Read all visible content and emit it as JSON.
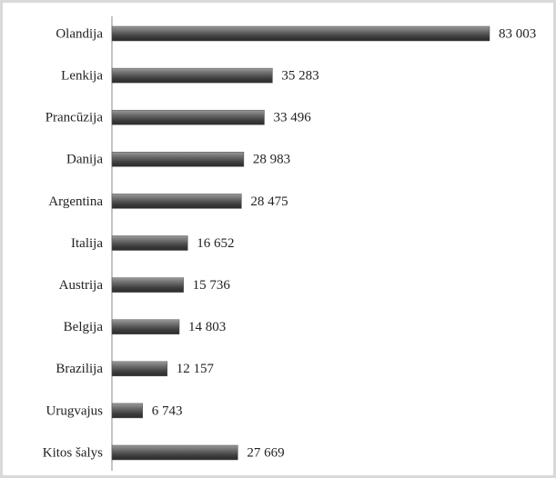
{
  "chart_data": {
    "type": "bar",
    "orientation": "horizontal",
    "categories": [
      "Olandija",
      "Lenkija",
      "Prancūzija",
      "Danija",
      "Argentina",
      "Italija",
      "Austrija",
      "Belgija",
      "Brazilija",
      "Urugvajus",
      "Kitos šalys"
    ],
    "values": [
      83003,
      35283,
      33496,
      28983,
      28475,
      16652,
      15736,
      14803,
      12157,
      6743,
      27669
    ],
    "value_labels": [
      "83 003",
      "35 283",
      "33 496",
      "28 983",
      "28 475",
      "16 652",
      "15 736",
      "14 803",
      "12 157",
      "6 743",
      "27 669"
    ],
    "color": "#555555"
  }
}
